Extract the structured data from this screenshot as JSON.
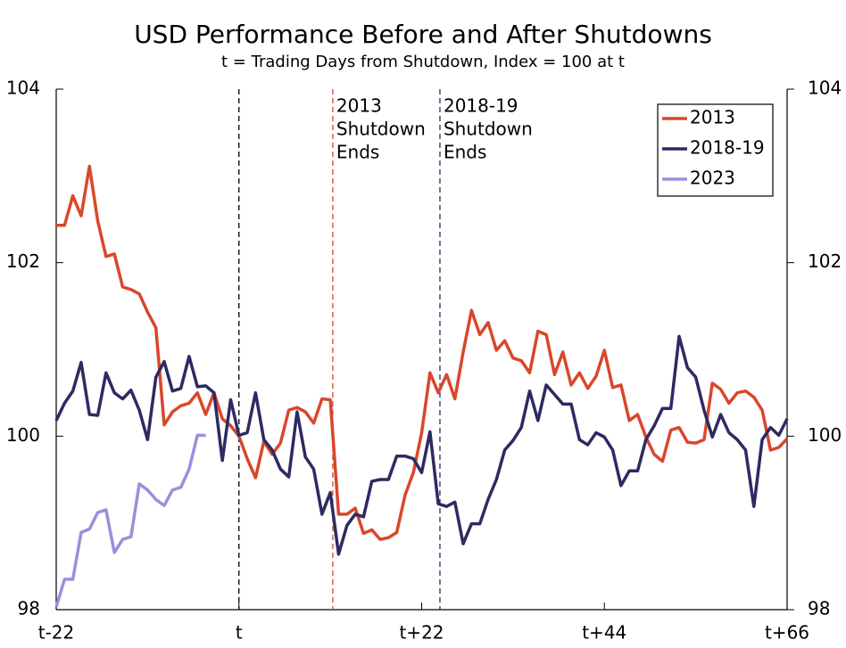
{
  "chart_data": {
    "type": "line",
    "title": "USD Performance Before and After Shutdowns",
    "subtitle": "t = Trading Days from Shutdown, Index = 100 at t",
    "x": [
      -22,
      -21,
      -20,
      -19,
      -18,
      -17,
      -16,
      -15,
      -14,
      -13,
      -12,
      -11,
      -10,
      -9,
      -8,
      -7,
      -6,
      -5,
      -4,
      -3,
      -2,
      -1,
      0,
      1,
      2,
      3,
      4,
      5,
      6,
      7,
      8,
      9,
      10,
      11,
      12,
      13,
      14,
      15,
      16,
      17,
      18,
      19,
      20,
      21,
      22,
      23,
      24,
      25,
      26,
      27,
      28,
      29,
      30,
      31,
      32,
      33,
      34,
      35,
      36,
      37,
      38,
      39,
      40,
      41,
      42,
      43,
      44,
      45,
      46,
      47,
      48,
      49,
      50,
      51,
      52,
      53,
      54,
      55,
      56,
      57,
      58,
      59,
      60,
      61,
      62,
      63,
      64,
      65,
      66
    ],
    "series": [
      {
        "name": "2013",
        "color": "#d9472b",
        "values": [
          102.43,
          102.43,
          102.77,
          102.54,
          103.11,
          102.48,
          102.07,
          102.1,
          101.72,
          101.69,
          101.64,
          101.43,
          101.25,
          100.13,
          100.28,
          100.35,
          100.38,
          100.5,
          100.25,
          100.5,
          100.2,
          100.12,
          100.0,
          99.74,
          99.52,
          99.94,
          99.79,
          99.92,
          100.3,
          100.33,
          100.28,
          100.15,
          100.43,
          100.42,
          99.1,
          99.1,
          99.17,
          98.88,
          98.92,
          98.81,
          98.83,
          98.89,
          99.32,
          99.58,
          100.04,
          100.73,
          100.5,
          100.71,
          100.43,
          100.97,
          101.45,
          101.17,
          101.31,
          100.99,
          101.1,
          100.9,
          100.87,
          100.73,
          101.21,
          101.17,
          100.71,
          100.97,
          100.59,
          100.73,
          100.55,
          100.69,
          100.99,
          100.56,
          100.59,
          100.18,
          100.25,
          99.99,
          99.79,
          99.71,
          100.07,
          100.1,
          99.93,
          99.92,
          99.96,
          100.61,
          100.54,
          100.38,
          100.5,
          100.52,
          100.45,
          100.3,
          99.84,
          99.87,
          99.97
        ]
      },
      {
        "name": "2018-19",
        "color": "#2d2a63",
        "values": [
          100.18,
          100.38,
          100.52,
          100.85,
          100.25,
          100.24,
          100.73,
          100.5,
          100.43,
          100.53,
          100.3,
          99.96,
          100.68,
          100.86,
          100.52,
          100.55,
          100.92,
          100.57,
          100.58,
          100.5,
          99.72,
          100.42,
          100.01,
          100.04,
          100.5,
          99.96,
          99.84,
          99.62,
          99.53,
          100.28,
          99.76,
          99.62,
          99.1,
          99.35,
          98.64,
          98.97,
          99.1,
          99.07,
          99.48,
          99.5,
          99.5,
          99.77,
          99.77,
          99.74,
          99.58,
          100.05,
          99.22,
          99.19,
          99.24,
          98.76,
          98.99,
          98.99,
          99.27,
          99.5,
          99.84,
          99.95,
          100.1,
          100.52,
          100.18,
          100.59,
          100.48,
          100.37,
          100.37,
          99.96,
          99.9,
          100.04,
          99.99,
          99.84,
          99.43,
          99.6,
          99.6,
          99.96,
          100.12,
          100.32,
          100.32,
          101.15,
          100.79,
          100.68,
          100.3,
          99.99,
          100.25,
          100.04,
          99.96,
          99.84,
          99.19,
          99.96,
          100.1,
          100.01,
          100.2
        ]
      },
      {
        "name": "2023",
        "color": "#9b8fdb",
        "values": [
          98.03,
          98.35,
          98.35,
          98.89,
          98.93,
          99.12,
          99.15,
          98.66,
          98.81,
          98.84,
          99.45,
          99.38,
          99.27,
          99.2,
          99.38,
          99.41,
          99.62,
          100.01,
          100.01,
          null,
          null,
          null,
          null,
          null,
          null,
          null,
          null,
          null,
          null,
          null,
          null,
          null,
          null,
          null,
          null,
          null,
          null,
          null,
          null,
          null,
          null,
          null,
          null,
          null,
          null,
          null,
          null,
          null,
          null,
          null,
          null,
          null,
          null,
          null,
          null,
          null,
          null,
          null,
          null,
          null,
          null,
          null,
          null,
          null,
          null,
          null,
          null,
          null,
          null,
          null,
          null,
          null,
          null,
          null,
          null,
          null,
          null,
          null,
          null,
          null,
          null,
          null,
          null,
          null,
          null,
          null,
          null,
          null,
          null
        ]
      }
    ],
    "xlim": [
      -22,
      66
    ],
    "xticks": [
      {
        "value": -22,
        "label": "t-22"
      },
      {
        "value": 0,
        "label": "t"
      },
      {
        "value": 22,
        "label": "t+22"
      },
      {
        "value": 44,
        "label": "t+44"
      },
      {
        "value": 66,
        "label": "t+66"
      }
    ],
    "ylim": [
      98,
      104
    ],
    "yticks": [
      98,
      100,
      102,
      104
    ],
    "y2lim": [
      98,
      104
    ],
    "y2ticks": [
      98,
      100,
      102,
      104
    ],
    "vlines": [
      {
        "x": 0,
        "color": "#000000"
      },
      {
        "x": 11.3,
        "color": "#d9472b",
        "label": [
          "2013",
          "Shutdown",
          "Ends"
        ]
      },
      {
        "x": 24.2,
        "color": "#2d2a63",
        "label": [
          "2018-19",
          "Shutdown",
          "Ends"
        ]
      }
    ],
    "legend": "upper right"
  }
}
